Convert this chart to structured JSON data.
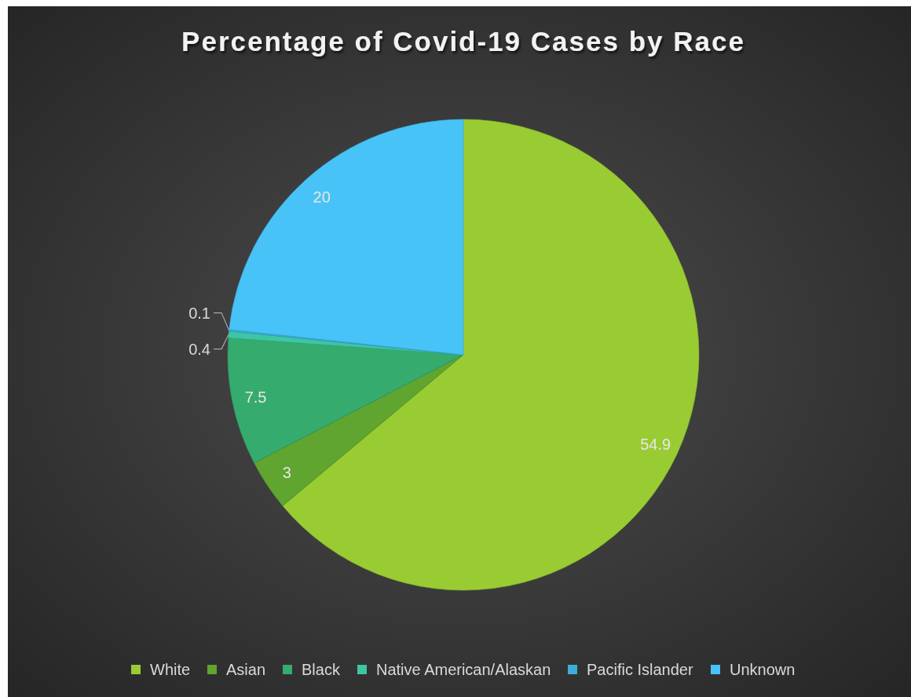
{
  "chart_data": {
    "type": "pie",
    "title": "Percentage of Covid-19 Cases by Race",
    "categories": [
      "White",
      "Asian",
      "Black",
      "Native American/Alaskan",
      "Pacific Islander",
      "Unknown"
    ],
    "values": [
      54.9,
      3,
      7.5,
      0.4,
      0.1,
      20
    ],
    "colors": [
      "#99cc33",
      "#5fa52f",
      "#35ab6d",
      "#3cc6a4",
      "#3aaed6",
      "#47c3f8"
    ],
    "data_labels": true,
    "legend": "bottom"
  }
}
